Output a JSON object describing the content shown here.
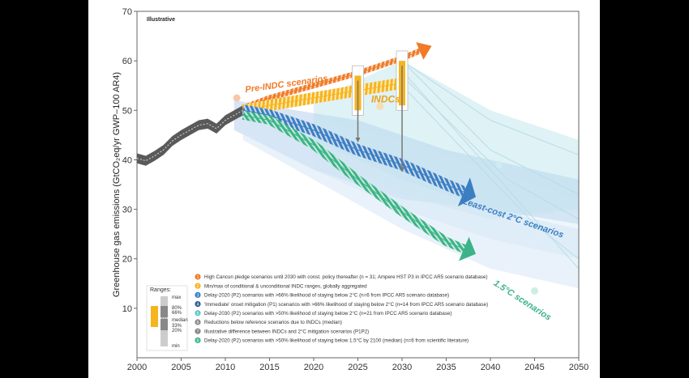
{
  "chart_data": {
    "type": "line",
    "tag": "Illustrative",
    "ylabel": "Greenhouse gas emissions (GtCO₂eq/yr GWP–100 AR4)",
    "xlim": [
      2000,
      2050
    ],
    "ylim": [
      0,
      70
    ],
    "x_ticks": [
      2000,
      2005,
      2010,
      2015,
      2020,
      2025,
      2030,
      2035,
      2040,
      2045,
      2050
    ],
    "y_ticks": [
      10,
      20,
      30,
      40,
      50,
      60,
      70
    ],
    "grid": false,
    "historical": {
      "x": [
        2000,
        2001,
        2002,
        2003,
        2004,
        2005,
        2006,
        2007,
        2008,
        2009,
        2010,
        2011,
        2012
      ],
      "y": [
        40.3,
        39.8,
        40.8,
        42.0,
        43.8,
        45.0,
        46.0,
        47.0,
        47.3,
        46.3,
        48.0,
        49.0,
        50.0
      ]
    },
    "series": [
      {
        "name": "Pre-INDC scenarios",
        "color": "#f07a28",
        "x": [
          2012,
          2015,
          2020,
          2025,
          2030,
          2032
        ],
        "y": [
          50.5,
          52.5,
          55.0,
          57.5,
          60.5,
          62.0
        ]
      },
      {
        "name": "INDCs",
        "color": "#f6b41e",
        "x": [
          2012,
          2015,
          2020,
          2025,
          2030
        ],
        "y": [
          50.0,
          51.0,
          52.5,
          54.0,
          55.5
        ]
      },
      {
        "name": "Least-cost 2°C scenarios",
        "color": "#3b7ec2",
        "x": [
          2012,
          2015,
          2020,
          2025,
          2030,
          2035,
          2037
        ],
        "y": [
          50.0,
          49.0,
          46.0,
          42.0,
          39.0,
          35.0,
          33.5
        ]
      },
      {
        "name": "1.5°C scenarios",
        "color": "#3db38a",
        "x": [
          2012,
          2015,
          2020,
          2025,
          2030,
          2035,
          2037
        ],
        "y": [
          49.0,
          48.0,
          43.0,
          36.0,
          29.5,
          23.5,
          22.0
        ]
      }
    ],
    "annotations": [
      "Pre-INDC scenarios",
      "INDCs",
      "Least-cost 2°C scenarios",
      "1.5°C scenarios"
    ],
    "ranges_legend": {
      "title": "Ranges:",
      "labels": [
        "max",
        "80%",
        "66%",
        "median",
        "33%",
        "20%",
        "min"
      ]
    },
    "legend": [
      {
        "n": "1",
        "color": "#f07a28",
        "text": "High Cancun pledge scenarios until 2030 with const. policy thereafter (n = 31; Ampere HST P3 in IPCC AR5 scenario database)"
      },
      {
        "n": "2",
        "color": "#f6b41e",
        "text": "Min/max of conditional & unconditional INDC ranges, globally aggregated"
      },
      {
        "n": "3",
        "color": "#3b7ec2",
        "text": "Delay-2020 (P2) scenarios with >66% likelihood of staying below 2°C (n=6 from IPCC AR5 scenario database)"
      },
      {
        "n": "4",
        "color": "#2e5e96",
        "text": "'Immediate' onset mitigation (P1) scenarios with >66% likelihood of staying below 2°C (n=14 from IPCC AR5 scenario database)"
      },
      {
        "n": "5",
        "color": "#5cc3cf",
        "text": "Delay-2030 (P2) scenarios with >50% likelihood of staying below 2°C (n=21 from IPCC AR5 scenario database)"
      },
      {
        "n": "6",
        "color": "#888888",
        "text": "Reductions below reference scenarios due to INDCs (median)"
      },
      {
        "n": "7",
        "color": "#888888",
        "text": "Illustrative difference between INDCs and 2°C mitigation scenarios (P1P2)"
      },
      {
        "n": "8",
        "color": "#3db38a",
        "text": "Delay-2020 (P2) scenarios with >50% likelihood of staying below 1.5°C by 2100 (median) (n=6 from scientific literature)"
      }
    ]
  }
}
